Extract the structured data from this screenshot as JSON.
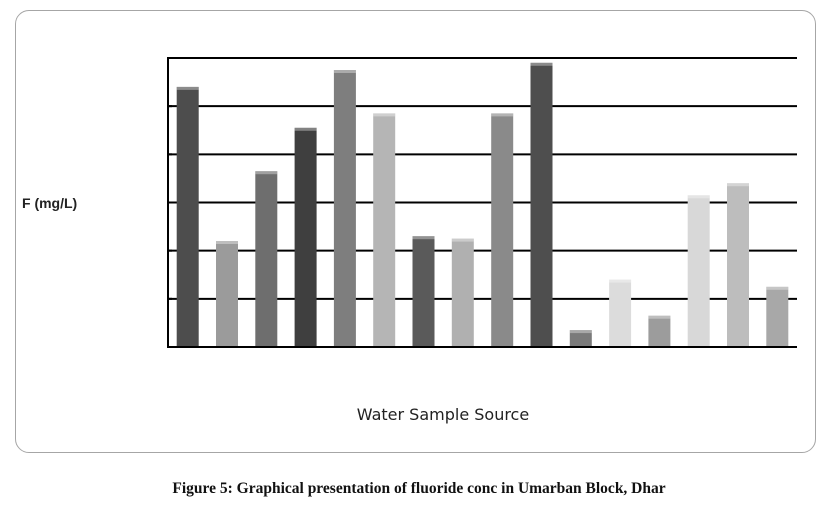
{
  "chart_data": {
    "type": "bar",
    "title": "",
    "xlabel": "Water Sample Source",
    "ylabel": "F (mg/L)",
    "ylim": [
      0,
      6
    ],
    "grid": true,
    "legend": "none",
    "values": [
      5.4,
      2.2,
      3.65,
      4.55,
      5.75,
      4.85,
      2.3,
      2.25,
      4.85,
      5.9,
      0.35,
      1.4,
      0.65,
      3.15,
      3.4,
      1.25
    ],
    "colors": [
      "#4d4d4d",
      "#9b9b9b",
      "#6e6e6e",
      "#3f3f3f",
      "#7e7e7e",
      "#b5b5b5",
      "#5a5a5a",
      "#b0b0b0",
      "#8a8a8a",
      "#4e4e4e",
      "#7a7a7a",
      "#dcdcdc",
      "#9c9c9c",
      "#d8d8d8",
      "#bdbdbd",
      "#a8a8a8"
    ]
  },
  "caption": "Figure 5: Graphical presentation of fluoride conc in Umarban Block, Dhar"
}
